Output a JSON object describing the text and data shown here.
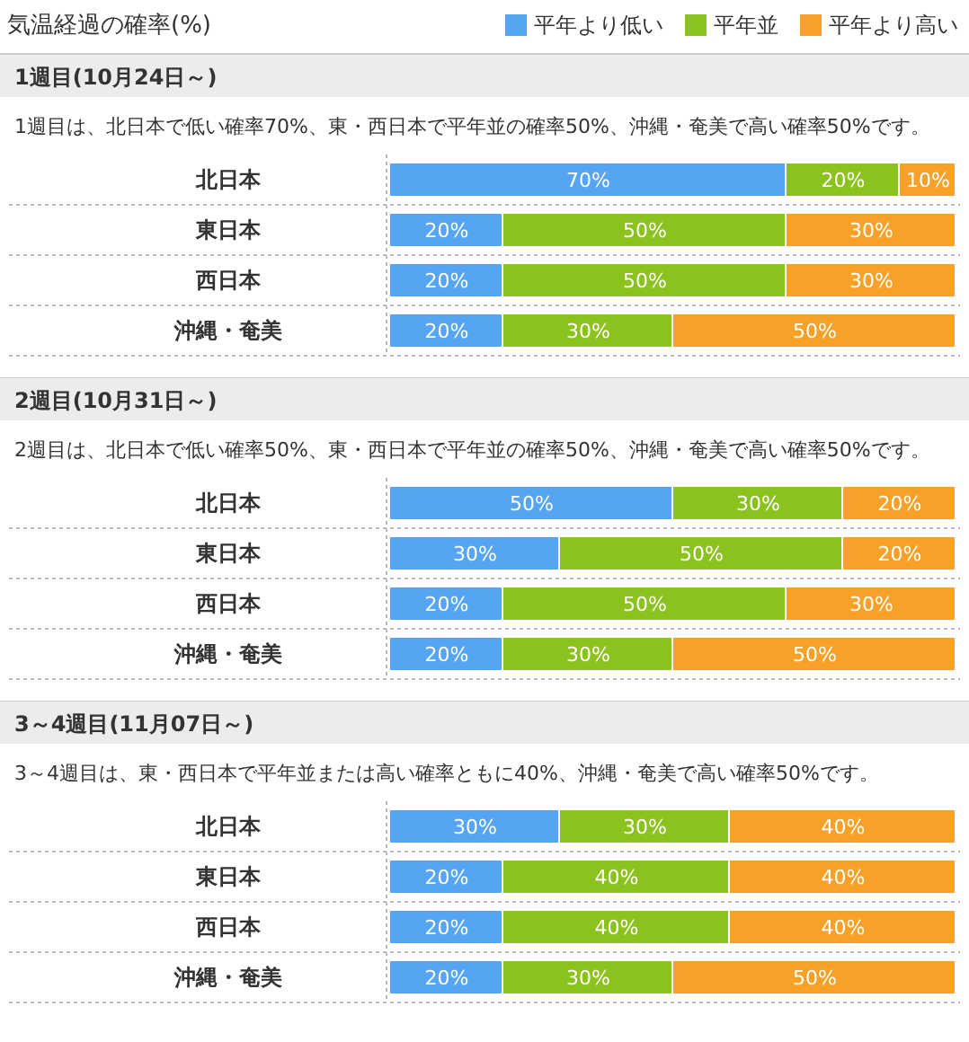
{
  "chart_data": [
    {
      "type": "bar",
      "orientation": "horizontal",
      "stacked": true,
      "annotations": [
        "気温経過の確率(%)",
        "1週目(10月24日～)",
        "1週目は、北日本で低い確率70%、東・西日本で平年並の確率50%、沖縄・奄美で高い確率50%です。"
      ],
      "legend": "top right",
      "tick_labels": false,
      "xlim": [
        0,
        100
      ],
      "categories": [
        "北日本",
        "東日本",
        "西日本",
        "沖縄・奄美"
      ],
      "series": [
        {
          "name": "平年より低い",
          "color": "#55a5f3",
          "values": [
            70,
            20,
            20,
            20
          ],
          "value_labels": [
            "70%",
            "20%",
            "20%",
            "20%"
          ]
        },
        {
          "name": "平年並",
          "color": "#8cc21e",
          "values": [
            20,
            50,
            50,
            30
          ],
          "value_labels": [
            "20%",
            "50%",
            "50%",
            "30%"
          ]
        },
        {
          "name": "平年より高い",
          "color": "#f7a128",
          "values": [
            10,
            30,
            30,
            50
          ],
          "value_labels": [
            "10%",
            "30%",
            "30%",
            "50%"
          ]
        }
      ]
    },
    {
      "type": "bar",
      "orientation": "horizontal",
      "stacked": true,
      "annotations": [
        "2週目(10月31日～)",
        "2週目は、北日本で低い確率50%、東・西日本で平年並の確率50%、沖縄・奄美で高い確率50%です。"
      ],
      "tick_labels": false,
      "xlim": [
        0,
        100
      ],
      "categories": [
        "北日本",
        "東日本",
        "西日本",
        "沖縄・奄美"
      ],
      "series": [
        {
          "color": "#55a5f3",
          "values": [
            50,
            30,
            20,
            20
          ],
          "value_labels": [
            "50%",
            "30%",
            "20%",
            "20%"
          ]
        },
        {
          "color": "#8cc21e",
          "values": [
            30,
            50,
            50,
            30
          ],
          "value_labels": [
            "30%",
            "50%",
            "50%",
            "30%"
          ]
        },
        {
          "color": "#f7a128",
          "values": [
            20,
            20,
            30,
            50
          ],
          "value_labels": [
            "20%",
            "20%",
            "30%",
            "50%"
          ]
        }
      ]
    },
    {
      "type": "bar",
      "orientation": "horizontal",
      "stacked": true,
      "annotations": [
        "3～4週目(11月07日～)",
        "3～4週目は、東・西日本で平年並または高い確率ともに40%、沖縄・奄美で高い確率50%です。"
      ],
      "tick_labels": false,
      "xlim": [
        0,
        100
      ],
      "categories": [
        "北日本",
        "東日本",
        "西日本",
        "沖縄・奄美"
      ],
      "series": [
        {
          "color": "#55a5f3",
          "values": [
            30,
            20,
            20,
            20
          ],
          "value_labels": [
            "30%",
            "20%",
            "20%",
            "20%"
          ]
        },
        {
          "color": "#8cc21e",
          "values": [
            30,
            40,
            40,
            30
          ],
          "value_labels": [
            "30%",
            "40%",
            "40%",
            "30%"
          ]
        },
        {
          "color": "#f7a128",
          "values": [
            40,
            40,
            40,
            50
          ],
          "value_labels": [
            "40%",
            "40%",
            "40%",
            "50%"
          ]
        }
      ]
    }
  ]
}
